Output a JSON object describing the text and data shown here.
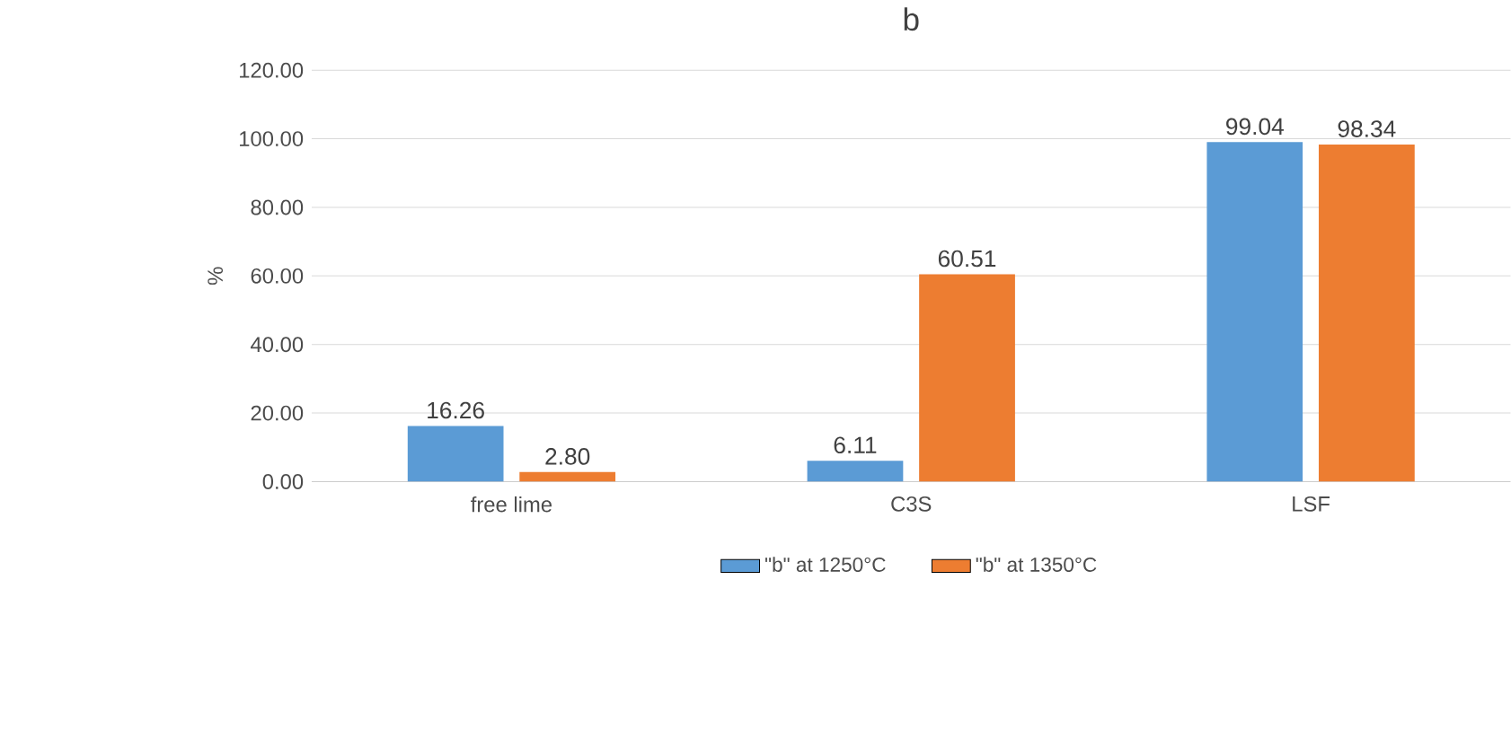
{
  "chart_data": {
    "type": "bar",
    "title": "b",
    "ylabel": "%",
    "categories": [
      "free lime",
      "C3S",
      "LSF"
    ],
    "series": [
      {
        "name": "\"b\" at 1250°C",
        "color": "#5b9bd5",
        "values": [
          16.26,
          6.11,
          99.04
        ],
        "value_labels": [
          "16.26",
          "6.11",
          "99.04"
        ]
      },
      {
        "name": "\"b\" at 1350°C",
        "color": "#ed7d31",
        "values": [
          2.8,
          60.51,
          98.34
        ],
        "value_labels": [
          "2.80",
          "60.51",
          "98.34"
        ]
      }
    ],
    "ylim": [
      0,
      120
    ],
    "yticks": [
      {
        "value": 0,
        "label": "0.00"
      },
      {
        "value": 20,
        "label": "20.00"
      },
      {
        "value": 40,
        "label": "40.00"
      },
      {
        "value": 60,
        "label": "60.00"
      },
      {
        "value": 80,
        "label": "80.00"
      },
      {
        "value": 100,
        "label": "100.00"
      },
      {
        "value": 120,
        "label": "120.00"
      }
    ],
    "grid": "y",
    "legend": "bottom"
  }
}
